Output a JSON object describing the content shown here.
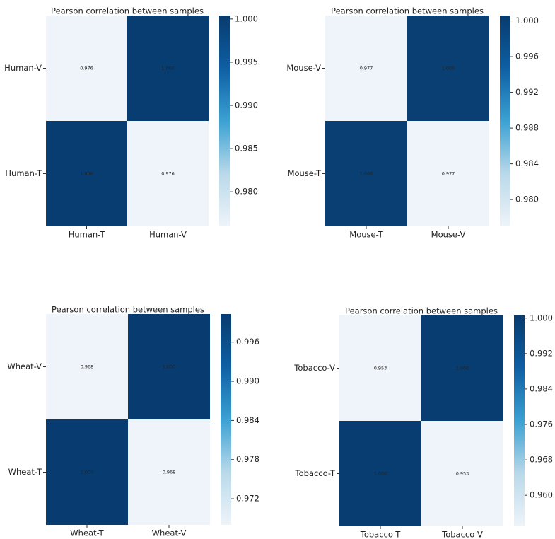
{
  "chart_data": [
    {
      "type": "heatmap",
      "title": "Pearson correlation between samples",
      "x_categories": [
        "Human-T",
        "Human-V"
      ],
      "y_categories": [
        "Human-V",
        "Human-T"
      ],
      "values": [
        [
          0.976,
          1.0
        ],
        [
          1.0,
          0.976
        ]
      ],
      "value_labels": [
        [
          "0.976",
          "1.000"
        ],
        [
          "1.000",
          "0.976"
        ]
      ],
      "clim": [
        0.976,
        1.0004
      ],
      "cticks": [
        {
          "value": 1.0,
          "label": "1.000"
        },
        0.995,
        {
          "value": 0.99,
          "label": "0.990"
        },
        0.985,
        {
          "value": 0.98,
          "label": "0.980"
        }
      ],
      "colorscale": [
        "#eef4f9",
        "#b9d9ea",
        "#3ba1d2",
        "#0e5fa3",
        "#083b6e"
      ]
    },
    {
      "type": "heatmap",
      "title": "Pearson correlation between samples",
      "x_categories": [
        "Mouse-T",
        "Mouse-V"
      ],
      "y_categories": [
        "Mouse-V",
        "Mouse-T"
      ],
      "values": [
        [
          0.977,
          1.0
        ],
        [
          1.0,
          0.977
        ]
      ],
      "value_labels": [
        [
          "0.977",
          "1.000"
        ],
        [
          "1.000",
          "0.977"
        ]
      ],
      "clim": [
        0.977,
        1.0006
      ],
      "cticks": [
        {
          "value": 1.0,
          "label": "1.000"
        },
        0.996,
        0.992,
        0.988,
        0.984,
        {
          "value": 0.98,
          "label": "0.980"
        }
      ],
      "colorscale": [
        "#eef4f9",
        "#b9d9ea",
        "#3ba1d2",
        "#0e5fa3",
        "#083b6e"
      ]
    },
    {
      "type": "heatmap",
      "title": "Pearson correlation between samples",
      "x_categories": [
        "Wheat-T",
        "Wheat-V"
      ],
      "y_categories": [
        "Wheat-V",
        "Wheat-T"
      ],
      "values": [
        [
          0.968,
          1.0
        ],
        [
          1.0,
          0.968
        ]
      ],
      "value_labels": [
        [
          "0.968",
          "1.000"
        ],
        [
          "1.000",
          "0.968"
        ]
      ],
      "clim": [
        0.968,
        1.0003
      ],
      "cticks": [
        0.996,
        {
          "value": 0.99,
          "label": "0.990"
        },
        0.984,
        0.978,
        0.972
      ],
      "colorscale": [
        "#eef4f9",
        "#b9d9ea",
        "#3ba1d2",
        "#0e5fa3",
        "#083b6e"
      ]
    },
    {
      "type": "heatmap",
      "title": "Pearson correlation between samples",
      "x_categories": [
        "Tobacco-T",
        "Tobacco-V"
      ],
      "y_categories": [
        "Tobacco-V",
        "Tobacco-T"
      ],
      "values": [
        [
          0.953,
          1.0
        ],
        [
          1.0,
          0.953
        ]
      ],
      "value_labels": [
        [
          "0.953",
          "1.000"
        ],
        [
          "1.000",
          "0.953"
        ]
      ],
      "clim": [
        0.953,
        1.0006
      ],
      "cticks": [
        {
          "value": 1.0,
          "label": "1.000"
        },
        0.992,
        0.984,
        0.976,
        0.968,
        {
          "value": 0.96,
          "label": "0.960"
        }
      ],
      "colorscale": [
        "#eef4f9",
        "#b9d9ea",
        "#3ba1d2",
        "#0e5fa3",
        "#083b6e"
      ]
    }
  ]
}
